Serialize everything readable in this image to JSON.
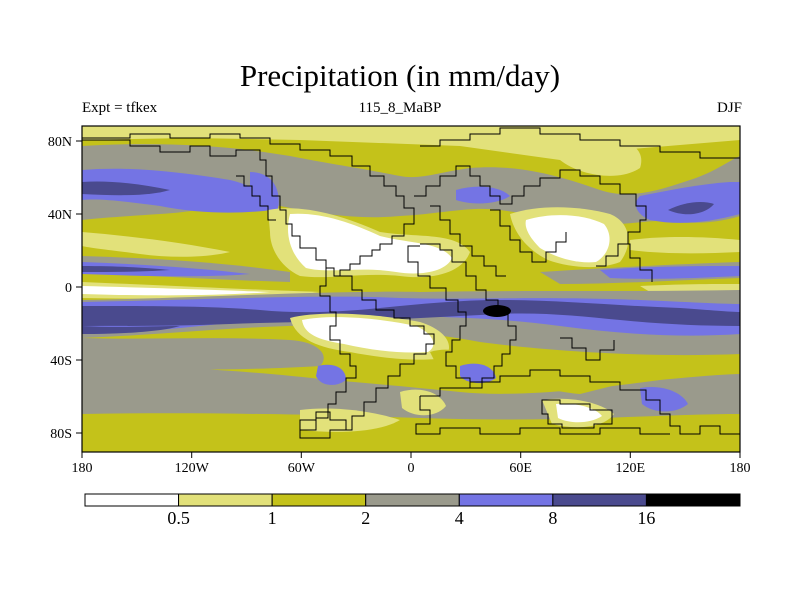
{
  "title": "Precipitation (in mm/day)",
  "left_label": "Expt = tfkex",
  "center_label": "115_8_MaBP",
  "right_label": "DJF",
  "map": {
    "projection": "cylindrical equidistant",
    "lon_range": [
      -180,
      180
    ],
    "lat_range": [
      -90,
      90
    ],
    "x_ticks": [
      "180",
      "120W",
      "60W",
      "0",
      "60E",
      "120E",
      "180"
    ],
    "y_ticks": [
      "80N",
      "40N",
      "0",
      "40S",
      "80S"
    ]
  },
  "colorbar": {
    "levels": [
      "0.5",
      "1",
      "2",
      "4",
      "8",
      "16"
    ],
    "colors": [
      "#ffffff",
      "#e2e17a",
      "#c4c21a",
      "#9a9a8c",
      "#7474e4",
      "#4a4a8e",
      "#000000"
    ]
  }
}
